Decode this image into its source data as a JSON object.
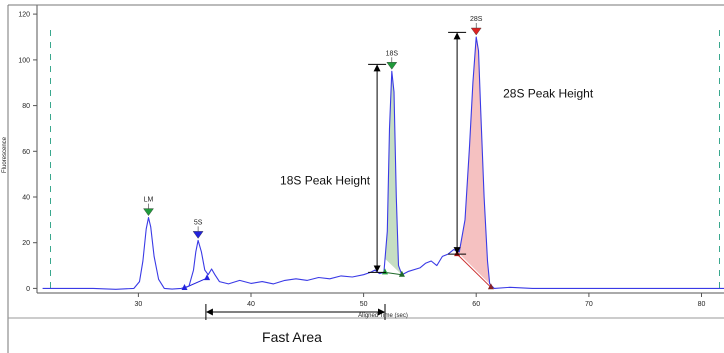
{
  "chart_data": {
    "type": "line",
    "title": "",
    "xlabel": "Aligned Time (sec)",
    "ylabel": "Fluorescence",
    "xlim": [
      21,
      82
    ],
    "ylim": [
      -2,
      124
    ],
    "x_ticks": [
      30,
      40,
      50,
      60,
      70,
      80
    ],
    "y_ticks": [
      0,
      20,
      40,
      60,
      80,
      100,
      120
    ],
    "grid": false,
    "series": [
      {
        "color": "#3a3ae6",
        "points": [
          [
            21.5,
            0
          ],
          [
            24,
            0
          ],
          [
            26,
            0
          ],
          [
            28,
            -0.4
          ],
          [
            29.6,
            0
          ],
          [
            30.1,
            3
          ],
          [
            30.4,
            12
          ],
          [
            30.7,
            26
          ],
          [
            30.9,
            31
          ],
          [
            31.1,
            27
          ],
          [
            31.4,
            14
          ],
          [
            31.8,
            4
          ],
          [
            32.3,
            0
          ],
          [
            33,
            -0.3
          ],
          [
            33.8,
            0
          ],
          [
            34.5,
            1
          ],
          [
            34.9,
            8
          ],
          [
            35.1,
            16
          ],
          [
            35.3,
            21
          ],
          [
            35.6,
            16
          ],
          [
            35.9,
            8
          ],
          [
            36.2,
            6
          ],
          [
            36.5,
            8.5
          ],
          [
            36.8,
            6
          ],
          [
            37.2,
            3
          ],
          [
            38,
            2
          ],
          [
            39,
            3.5
          ],
          [
            40,
            2.2
          ],
          [
            41,
            3
          ],
          [
            42,
            2
          ],
          [
            43,
            3.5
          ],
          [
            44,
            4.2
          ],
          [
            45,
            3.5
          ],
          [
            46,
            4.8
          ],
          [
            47,
            4.2
          ],
          [
            48,
            5.5
          ],
          [
            49,
            5
          ],
          [
            50,
            6
          ],
          [
            50.6,
            7
          ],
          [
            51,
            8
          ],
          [
            51.4,
            6.5
          ],
          [
            51.8,
            7
          ],
          [
            52.1,
            25
          ],
          [
            52.3,
            70
          ],
          [
            52.5,
            95
          ],
          [
            52.7,
            86
          ],
          [
            52.9,
            40
          ],
          [
            53.1,
            10
          ],
          [
            53.4,
            6
          ],
          [
            54,
            7.5
          ],
          [
            55,
            9
          ],
          [
            55.5,
            11
          ],
          [
            56,
            12
          ],
          [
            56.5,
            10
          ],
          [
            57,
            14
          ],
          [
            57.5,
            15
          ],
          [
            58,
            17
          ],
          [
            58.5,
            16
          ],
          [
            59,
            30
          ],
          [
            59.4,
            62
          ],
          [
            59.7,
            90
          ],
          [
            60,
            110
          ],
          [
            60.2,
            104
          ],
          [
            60.4,
            78
          ],
          [
            60.7,
            40
          ],
          [
            61,
            12
          ],
          [
            61.2,
            2
          ],
          [
            61.6,
            0
          ],
          [
            63,
            0.5
          ],
          [
            65,
            0
          ],
          [
            70,
            0
          ],
          [
            75,
            0
          ],
          [
            80,
            0
          ],
          [
            82,
            0
          ]
        ]
      }
    ],
    "peaks": [
      {
        "label": "LM",
        "x": 30.9,
        "y": 31,
        "marker_color": "#1f9a3a"
      },
      {
        "label": "5S",
        "x": 35.3,
        "y": 21,
        "marker_color": "#2222dd"
      },
      {
        "label": "18S",
        "x": 52.5,
        "y": 95,
        "marker_color": "#1f9a3a"
      },
      {
        "label": "28S",
        "x": 60,
        "y": 110,
        "marker_color": "#dd2222"
      }
    ],
    "shaded_regions": [
      {
        "name": "18S area",
        "x_start": 51.9,
        "x_end": 53.4,
        "fill": "#bcd8b8"
      },
      {
        "name": "28S area",
        "x_start": 58.2,
        "x_end": 61.2,
        "fill": "#f3b6b6"
      }
    ],
    "baseline_markers": [
      {
        "x": 34.1,
        "y": 0.2,
        "color": "#2222dd"
      },
      {
        "x": 36.1,
        "y": 4.5,
        "color": "#2222dd"
      },
      {
        "x": 51.9,
        "y": 7,
        "color": "#1f9a3a"
      },
      {
        "x": 53.4,
        "y": 6,
        "color": "#1f6a2a"
      },
      {
        "x": 58.3,
        "y": 15,
        "color": "#aa1111"
      },
      {
        "x": 61.3,
        "y": 0.5,
        "color": "#882222"
      }
    ],
    "baselines": [
      {
        "x1": 34.1,
        "y1": 0.2,
        "x2": 36.1,
        "y2": 4.5,
        "color": "#2222dd"
      },
      {
        "x1": 51.9,
        "y1": 7,
        "x2": 53.4,
        "y2": 6,
        "color": "#1f6a2a"
      },
      {
        "x1": 58.3,
        "y1": 15,
        "x2": 61.3,
        "y2": 0.5,
        "color": "#cc3333"
      }
    ],
    "dashed_markers": [
      22.2,
      81.6
    ],
    "peak_height_arrows": [
      {
        "label": "18S Peak Height",
        "x": 51.2,
        "y_top": 98,
        "y_bottom": 7
      },
      {
        "label": "28S Peak Height",
        "x": 58.3,
        "y_top": 112,
        "y_bottom": 15
      }
    ],
    "fast_area": {
      "label": "Fast Area",
      "x_start": 36,
      "x_end": 51.9
    }
  }
}
